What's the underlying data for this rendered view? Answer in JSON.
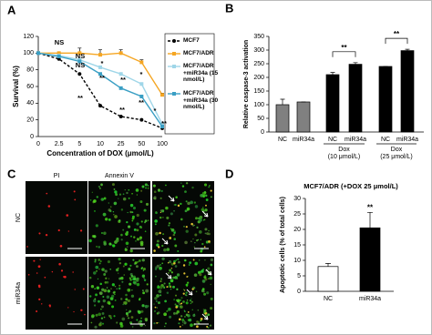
{
  "chart_data": [
    {
      "type": "line",
      "panel_label": "A",
      "xlabel": "Concentration of DOX (μmol/L)",
      "ylabel": "Survival (%)",
      "categories": [
        "0",
        "2.5",
        "5",
        "10",
        "25",
        "50",
        "100"
      ],
      "ylim": [
        0,
        120
      ],
      "yticks": [
        0,
        20,
        40,
        60,
        80,
        100,
        120
      ],
      "series": [
        {
          "name": "MCF7",
          "color": "#000000",
          "linestyle": "dashed",
          "marker": "circle",
          "values": [
            100,
            93,
            75,
            37,
            24,
            20,
            10
          ]
        },
        {
          "name": "MCF7/ADR",
          "color": "#f5a623",
          "linestyle": "solid",
          "marker": "square",
          "values": [
            100,
            100,
            100,
            98,
            100,
            89,
            50
          ],
          "errors": [
            0,
            0,
            6,
            6,
            4,
            3,
            2
          ]
        },
        {
          "name": "MCF7/ADR +miR34a (15 nmol/L)",
          "color": "#9fd6e8",
          "linestyle": "solid",
          "marker": "square",
          "values": [
            100,
            97,
            92,
            83,
            75,
            63,
            15
          ]
        },
        {
          "name": "MCF7/ADR +miR34a (30 nmol/L)",
          "color": "#3a9fc4",
          "linestyle": "solid",
          "marker": "square",
          "values": [
            100,
            96,
            90,
            75,
            58,
            48,
            12
          ]
        }
      ],
      "annotations": [
        "NS",
        "NS",
        "NS",
        "*",
        "**",
        "**",
        "*",
        "**",
        "**",
        "**",
        "*",
        "**"
      ]
    },
    {
      "type": "bar",
      "panel_label": "B",
      "ylabel": "Relative caspase-3 activation",
      "categories": [
        "NC",
        "miR34a",
        "NC",
        "miR34a",
        "NC",
        "miR34a"
      ],
      "groups": [
        [
          "Dox",
          "(10 μmol/L)"
        ],
        [
          "Dox",
          "(25 μmol/L)"
        ]
      ],
      "values": [
        100,
        110,
        210,
        248,
        240,
        298
      ],
      "errors": [
        20,
        0,
        8,
        6,
        0,
        5
      ],
      "colors": [
        "#808080",
        "#808080",
        "#000000",
        "#000000",
        "#000000",
        "#000000"
      ],
      "ylim": [
        0,
        350
      ],
      "yticks": [
        0,
        50,
        100,
        150,
        200,
        250,
        300,
        350
      ],
      "annotations": [
        "**",
        "**"
      ]
    },
    {
      "type": "bar",
      "panel_label": "D",
      "title": "MCF7/ADR (+DOX 25 μmol/L)",
      "ylabel": "Apoptotic cells (% of total cells)",
      "categories": [
        "NC",
        "miR34a"
      ],
      "values": [
        8,
        20.5
      ],
      "errors": [
        1,
        5
      ],
      "colors": [
        "#ffffff",
        "#000000"
      ],
      "ylim": [
        0,
        30
      ],
      "yticks": [
        0,
        5,
        10,
        15,
        20,
        25,
        30
      ],
      "annotations": [
        "**"
      ]
    }
  ],
  "panel_c": {
    "panel_label": "C",
    "columns": [
      "PI",
      "Annexin V"
    ],
    "rows": [
      "NC",
      "miR34a"
    ]
  }
}
